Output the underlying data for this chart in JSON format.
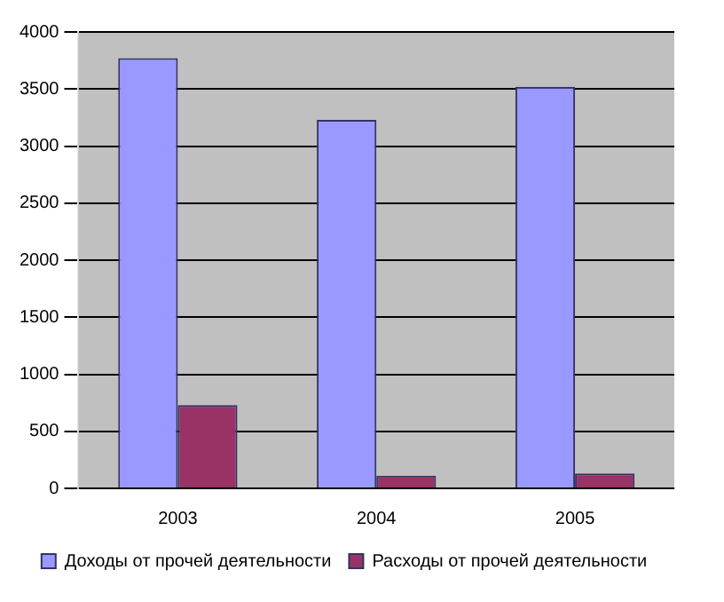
{
  "chart_data": {
    "type": "bar",
    "categories": [
      "2003",
      "2004",
      "2005"
    ],
    "series": [
      {
        "name": "Доходы от прочей деятельности",
        "color": "#9999ff",
        "values": [
          3770,
          3230,
          3520
        ]
      },
      {
        "name": "Расходы от прочей деятельности",
        "color": "#993366",
        "values": [
          730,
          110,
          130
        ]
      }
    ],
    "ylim": [
      0,
      4000
    ],
    "yticks": [
      0,
      500,
      1000,
      1500,
      2000,
      2500,
      3000,
      3500,
      4000
    ],
    "grid": "y",
    "legend": "bottom"
  }
}
